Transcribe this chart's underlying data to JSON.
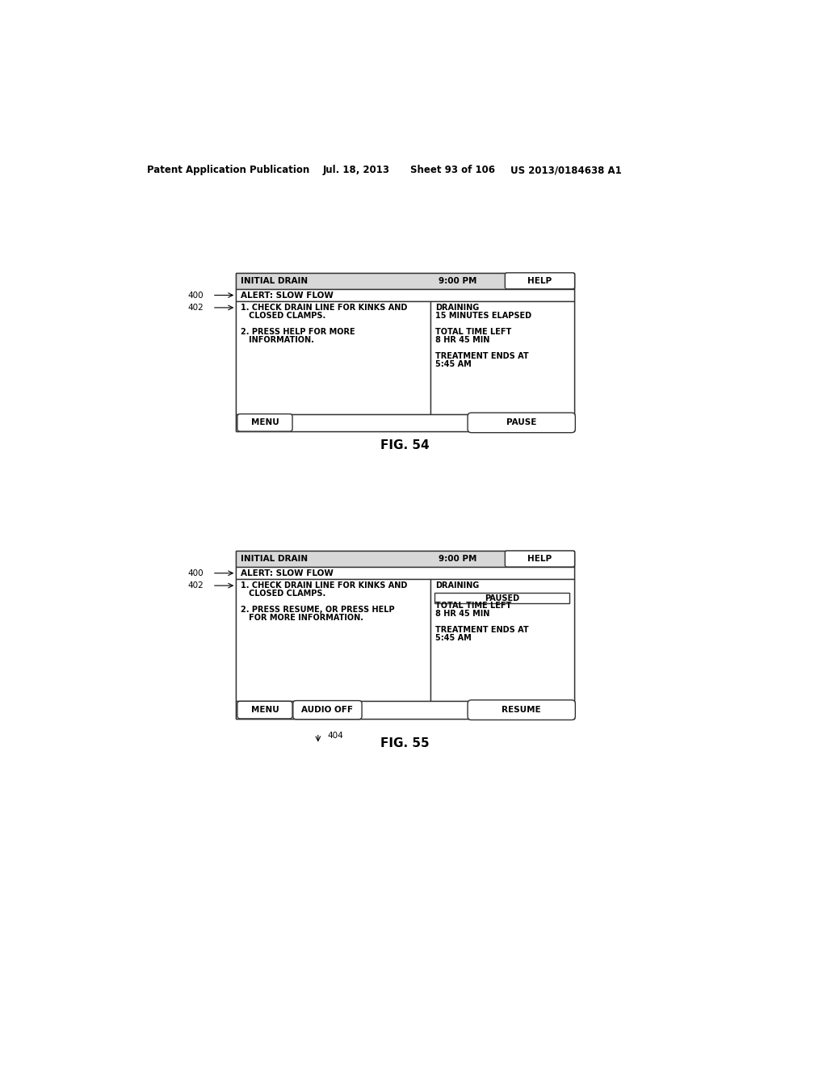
{
  "header_text": "Patent Application Publication",
  "header_date": "Jul. 18, 2013",
  "header_sheet": "Sheet 93 of 106",
  "header_patent": "US 2013/0184638 A1",
  "bg_color": "#ffffff",
  "fig54": {
    "title": "FIG. 54",
    "label_400": "400",
    "label_402": "402",
    "screen": {
      "title_bar_text": "INITIAL DRAIN",
      "time_text": "9:00 PM",
      "help_btn": "HELP",
      "alert_text": "ALERT: SLOW FLOW",
      "instructions": [
        "1. CHECK DRAIN LINE FOR KINKS AND",
        "   CLOSED CLAMPS.",
        "",
        "2. PRESS HELP FOR MORE",
        "   INFORMATION."
      ],
      "right_col": [
        "DRAINING",
        "15 MINUTES ELAPSED",
        "",
        "TOTAL TIME LEFT",
        "8 HR 45 MIN",
        "",
        "TREATMENT ENDS AT",
        "5:45 AM"
      ],
      "menu_btn": "MENU",
      "action_btn": "PAUSE"
    }
  },
  "fig55": {
    "title": "FIG. 55",
    "label_400": "400",
    "label_402": "402",
    "label_404": "404",
    "screen": {
      "title_bar_text": "INITIAL DRAIN",
      "time_text": "9:00 PM",
      "help_btn": "HELP",
      "alert_text": "ALERT: SLOW FLOW",
      "instructions": [
        "1. CHECK DRAIN LINE FOR KINKS AND",
        "   CLOSED CLAMPS.",
        "",
        "2. PRESS RESUME, OR PRESS HELP",
        "   FOR MORE INFORMATION."
      ],
      "right_col_top": "DRAINING",
      "paused_btn": "PAUSED",
      "right_col_bottom": [
        "TOTAL TIME LEFT",
        "8 HR 45 MIN",
        "",
        "TREATMENT ENDS AT",
        "5:45 AM"
      ],
      "menu_btn": "MENU",
      "audio_btn": "AUDIO OFF",
      "action_btn": "RESUME"
    }
  }
}
